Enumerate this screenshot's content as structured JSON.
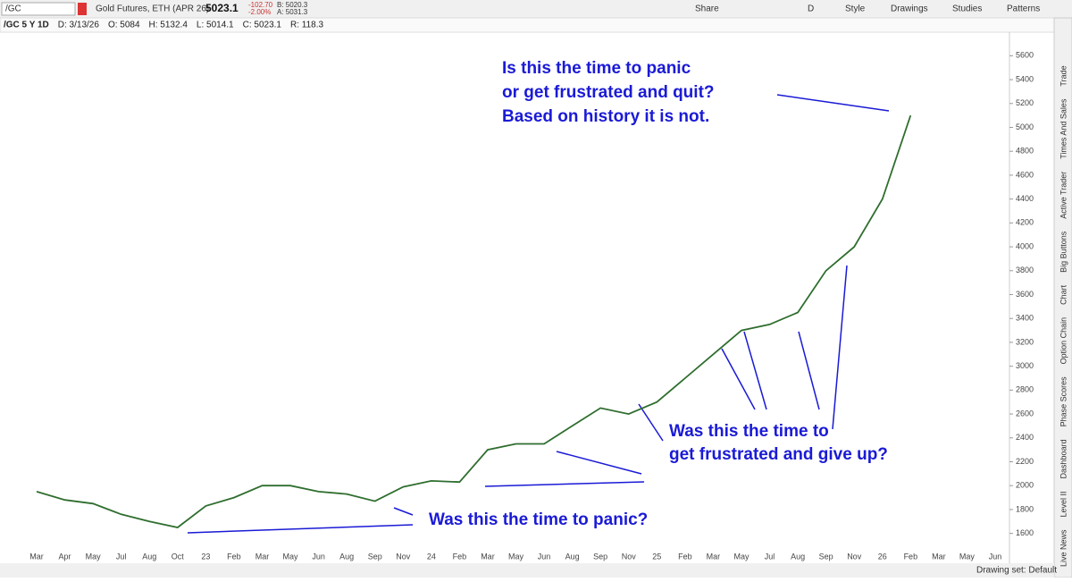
{
  "header": {
    "symbol": "/GC",
    "description": "Gold Futures, ETH (APR 26)",
    "last": "5023.1",
    "change": "-102.70",
    "change_pct": "-2.00%",
    "bid": "B: 5020.3",
    "ask": "A: 5031.3",
    "buttons": [
      "Share",
      "D",
      "Style",
      "Drawings",
      "Studies",
      "Patterns"
    ]
  },
  "info_bar": [
    "/GC 5 Y 1D",
    "D: 3/13/26",
    "O: 5084",
    "H: 5132.4",
    "L: 5014.1",
    "C: 5023.1",
    "R: 118.3"
  ],
  "side_tabs": [
    "Trade",
    "Times And Sales",
    "Active Trader",
    "Big Buttons",
    "Chart",
    "Option Chain",
    "Phase Scores",
    "Dashboard",
    "Level II",
    "Live News"
  ],
  "footer": {
    "drawing_set": "Drawing set: Default"
  },
  "chart_data": {
    "type": "line",
    "categories": [
      "Mar",
      "Apr",
      "May",
      "Jul",
      "Aug",
      "Oct",
      "23",
      "Feb",
      "Mar",
      "May",
      "Jun",
      "Aug",
      "Sep",
      "Nov",
      "24",
      "Feb",
      "Mar",
      "May",
      "Jun",
      "Aug",
      "Sep",
      "Nov",
      "25",
      "Feb",
      "Mar",
      "May",
      "Jul",
      "Aug",
      "Sep",
      "Nov",
      "26",
      "Feb",
      "Mar",
      "May",
      "Jun"
    ],
    "series": [
      {
        "color": "#2f6e2f",
        "values": [
          1950,
          1880,
          1850,
          1760,
          1700,
          1650,
          1830,
          1900,
          2000,
          2000,
          1950,
          1930,
          1870,
          1990,
          2040,
          2030,
          2300,
          2350,
          2350,
          2500,
          2650,
          2600,
          2700,
          2900,
          3100,
          3300,
          3350,
          3450,
          3800,
          4000,
          4400,
          5100,
          null,
          null,
          null
        ]
      }
    ],
    "ylim": [
      1500,
      5730
    ],
    "yticks": [
      1600,
      1800,
      2000,
      2200,
      2400,
      2600,
      2800,
      3000,
      3200,
      3400,
      3600,
      3800,
      4000,
      4200,
      4400,
      4600,
      4800,
      5000,
      5200,
      5400,
      5600
    ],
    "grid": false,
    "annotations": [
      "Is this the time to panic",
      "or get frustrated and quit?",
      "Based on history it is not.",
      "Was this the time to",
      "get frustrated and give up?",
      "Was this the time to panic?"
    ]
  }
}
